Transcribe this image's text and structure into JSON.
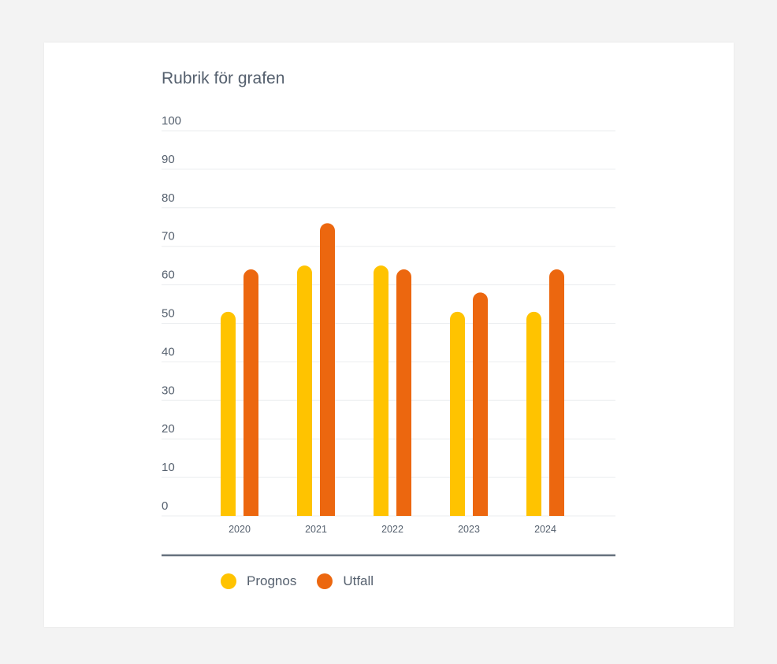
{
  "chart_data": {
    "type": "bar",
    "title": "Rubrik för grafen",
    "xlabel": "",
    "ylabel": "",
    "categories": [
      "2020",
      "2021",
      "2022",
      "2023",
      "2024"
    ],
    "series": [
      {
        "name": "Prognos",
        "color": "#ffc300",
        "values": [
          53,
          65,
          65,
          53,
          53
        ]
      },
      {
        "name": "Utfall",
        "color": "#ec670f",
        "values": [
          64,
          76,
          64,
          58,
          64
        ]
      }
    ],
    "ylim": [
      0,
      100
    ],
    "yticks": [
      "0",
      "10",
      "20",
      "30",
      "40",
      "50",
      "60",
      "70",
      "80",
      "90",
      "100"
    ],
    "grid": true,
    "legend_position": "bottom-left"
  }
}
